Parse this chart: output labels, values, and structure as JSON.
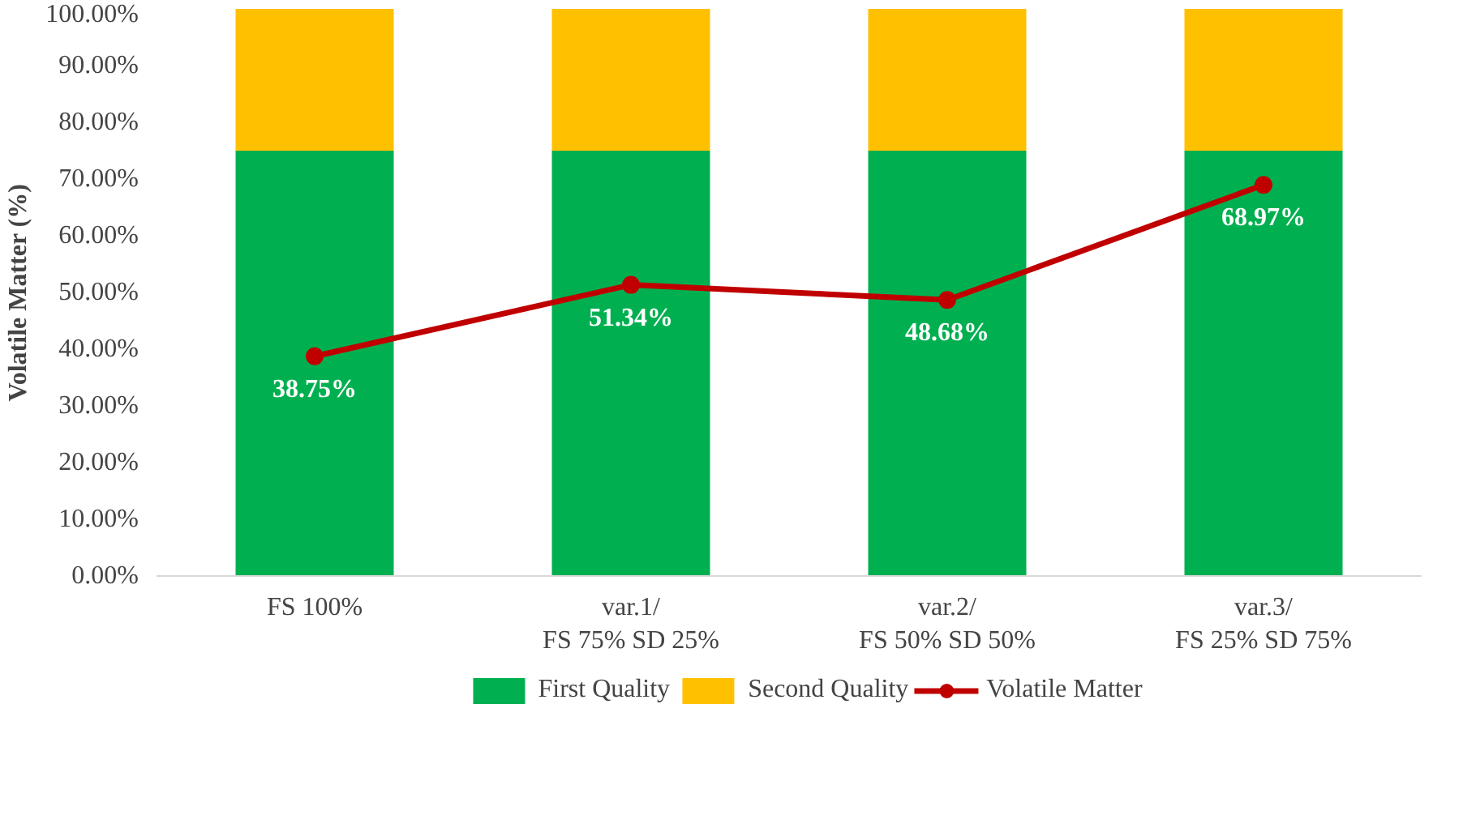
{
  "chart_data": {
    "type": "bar",
    "stacked": true,
    "ylabel": "Volatile Matter (%)",
    "categories": [
      "FS 100%",
      "var.1/\nFS 75% SD 25%",
      "var.2/\nFS 50% SD 50%",
      "var.3/\nFS 25% SD 75%"
    ],
    "series": [
      {
        "name": "First Quality",
        "color": "#00b050",
        "values": [
          75,
          75,
          75,
          75
        ]
      },
      {
        "name": "Second Quality",
        "color": "#ffc000",
        "values": [
          25,
          25,
          25,
          25
        ]
      },
      {
        "name": "Volatile Matter",
        "type": "line",
        "color": "#c00000",
        "marker": "circle",
        "values": [
          38.75,
          51.34,
          48.68,
          68.97
        ],
        "value_labels": [
          "38.75%",
          "51.34%",
          "48.68%",
          "68.97%"
        ]
      }
    ],
    "ylim": [
      0,
      100
    ],
    "yticks": [
      {
        "value": 0,
        "label": "0.00%"
      },
      {
        "value": 10,
        "label": "10.00%"
      },
      {
        "value": 20,
        "label": "20.00%"
      },
      {
        "value": 30,
        "label": "30.00%"
      },
      {
        "value": 40,
        "label": "40.00%"
      },
      {
        "value": 50,
        "label": "50.00%"
      },
      {
        "value": 60,
        "label": "60.00%"
      },
      {
        "value": 70,
        "label": "70.00%"
      },
      {
        "value": 80,
        "label": "80.00%"
      },
      {
        "value": 90,
        "label": "90.00%"
      },
      {
        "value": 100,
        "label": "100.00%"
      }
    ],
    "grid": false,
    "legend": "bottom"
  }
}
